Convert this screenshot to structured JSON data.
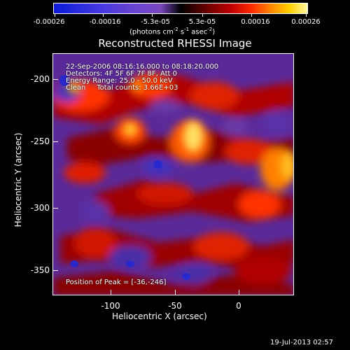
{
  "colorbar": {
    "ticks": [
      "-0.00026",
      "-0.00016",
      "-5.3e-05",
      "5.3e-05",
      "0.00016",
      "0.00026"
    ],
    "units_main": "(photons cm",
    "units_sup1": "-2",
    "units_mid": " s",
    "units_sup2": "-1",
    "units_mid2": " asec",
    "units_sup3": "-2",
    "units_end": ")"
  },
  "title": "Reconstructed RHESSI Image",
  "overlay": {
    "line1": "22-Sep-2006 08:16:16.000 to 08:18:20.000",
    "line2": "Detectors: 4F 5F 6F 7F 8F, Att 0",
    "line3": "Energy Range: 25.0 - 50.0 keV",
    "line4": "Clean     Total counts: 3.66E+03",
    "peak": "Position of Peak = [-36,-246]"
  },
  "axes": {
    "xlabel": "Heliocentric X (arcsec)",
    "ylabel": "Heliocentric Y (arcsec)",
    "xticks": [
      "-100",
      "-50",
      "0"
    ],
    "yticks": [
      "-200",
      "-250",
      "-300",
      "-350"
    ]
  },
  "footer": "19-Jul-2013 02:57",
  "colors": {
    "background": "#000000",
    "foreground": "#ffffff",
    "negative": "#2a2ce0",
    "positive_peak": "#fff8a0"
  }
}
